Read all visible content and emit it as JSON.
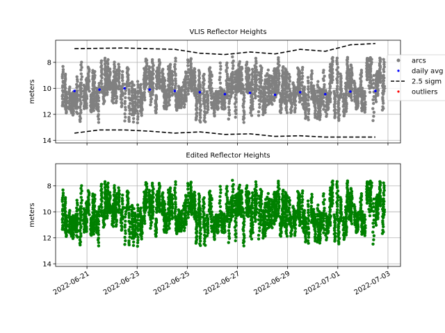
{
  "chart_data": [
    {
      "type": "scatter",
      "title": "VLIS Reflector Heights",
      "xlabel": "",
      "ylabel": "meters",
      "y_inverted": true,
      "ylim": [
        14.2,
        6.3
      ],
      "yticks": [
        8,
        10,
        12,
        14
      ],
      "grid": true,
      "legend": {
        "placement": "right",
        "entries": [
          {
            "label": "arcs",
            "color": "#808080",
            "marker": "dot"
          },
          {
            "label": "daily avg",
            "color": "#0000ff",
            "marker": "dot"
          },
          {
            "label": "2.5 sigm",
            "color": "#000000",
            "marker": "dashed-line"
          },
          {
            "label": "outliers",
            "color": "#ff0000",
            "marker": "dot"
          }
        ]
      },
      "arcs_color": "#808080",
      "daily_avg": {
        "name": "daily avg",
        "color": "#0000ff",
        "x": [
          "2022-06-20T12:00",
          "2022-06-21T12:00",
          "2022-06-22T12:00",
          "2022-06-23T12:00",
          "2022-06-24T12:00",
          "2022-06-25T12:00",
          "2022-06-26T12:00",
          "2022-06-27T12:00",
          "2022-06-28T12:00",
          "2022-06-29T12:00",
          "2022-06-30T12:00",
          "2022-07-01T12:00",
          "2022-07-02T12:00"
        ],
        "y": [
          10.2,
          10.1,
          10.0,
          10.1,
          10.2,
          10.3,
          10.45,
          10.35,
          10.5,
          10.3,
          10.45,
          10.25,
          10.2
        ]
      },
      "upper_sigma": {
        "name": "2.5 sigm",
        "color": "#000000",
        "x": [
          "2022-06-20T12:00",
          "2022-06-21T12:00",
          "2022-06-22T12:00",
          "2022-06-23T12:00",
          "2022-06-24T12:00",
          "2022-06-25T12:00",
          "2022-06-26T12:00",
          "2022-06-27T12:00",
          "2022-06-28T12:00",
          "2022-06-29T12:00",
          "2022-06-30T12:00",
          "2022-07-01T12:00",
          "2022-07-02T12:00"
        ],
        "y": [
          6.95,
          6.92,
          6.9,
          6.95,
          7.0,
          7.3,
          7.4,
          7.2,
          7.35,
          7.0,
          7.15,
          6.65,
          6.55
        ]
      },
      "lower_sigma": {
        "name": "2.5 sigm",
        "color": "#000000",
        "x": [
          "2022-06-20T12:00",
          "2022-06-21T12:00",
          "2022-06-22T12:00",
          "2022-06-23T12:00",
          "2022-06-24T12:00",
          "2022-06-25T12:00",
          "2022-06-26T12:00",
          "2022-06-27T12:00",
          "2022-06-28T12:00",
          "2022-06-29T12:00",
          "2022-06-30T12:00",
          "2022-07-01T12:00",
          "2022-07-02T12:00"
        ],
        "y": [
          13.45,
          13.2,
          13.2,
          13.3,
          13.45,
          13.35,
          13.55,
          13.5,
          13.7,
          13.65,
          13.75,
          13.75,
          13.75
        ]
      },
      "outliers": {
        "name": "outliers",
        "color": "#ff0000",
        "x": [],
        "y": []
      }
    },
    {
      "type": "scatter",
      "title": "Edited Reflector Heights",
      "xlabel": "",
      "ylabel": "meters",
      "y_inverted": true,
      "ylim": [
        14.2,
        6.3
      ],
      "yticks": [
        8,
        10,
        12,
        14
      ],
      "grid": true,
      "points_color": "#008000"
    }
  ],
  "x_axis": {
    "range": [
      "2022-06-19T18:00",
      "2022-07-03T12:00"
    ],
    "tick_labels": [
      "2022-06-21",
      "2022-06-23",
      "2022-06-25",
      "2022-06-27",
      "2022-06-29",
      "2022-07-01",
      "2022-07-03"
    ],
    "data_span": [
      "2022-06-20",
      "2022-07-02T22:00"
    ]
  },
  "ytick_labels": [
    "8",
    "10",
    "12",
    "14"
  ]
}
